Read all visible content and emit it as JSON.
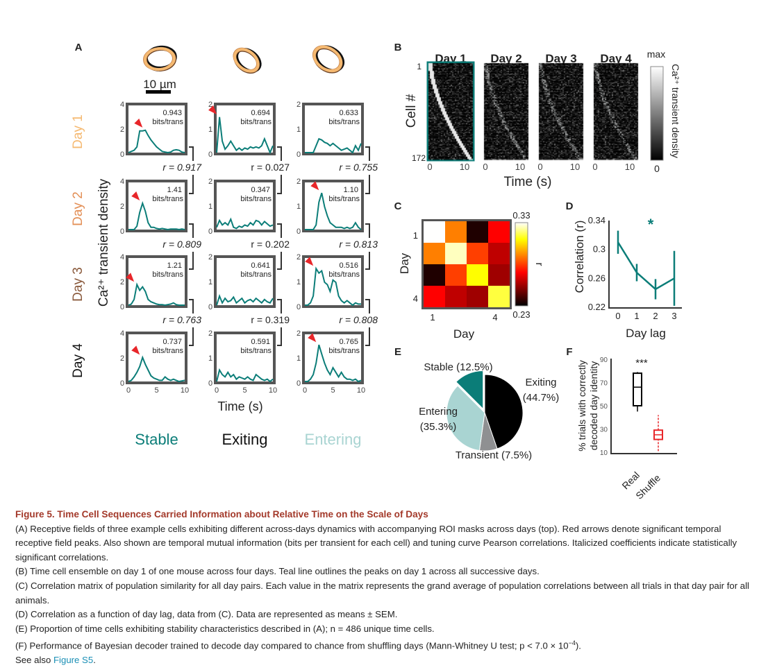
{
  "colors": {
    "teal": "#0b7d78",
    "light_teal": "#a9d4d2",
    "day1": "#f5b971",
    "day2": "#e38f56",
    "day3": "#8a5a3c",
    "day4": "#111111",
    "arrow": "#e8262a",
    "frame": "#555555",
    "caption_title": "#a3392a",
    "link": "#1a8fb5"
  },
  "panelA": {
    "label": "A",
    "scale_bar": "10 µm",
    "day_labels": [
      "Day 1",
      "Day 2",
      "Day 3",
      "Day 4"
    ],
    "ylabel": "Ca²⁺ transient density",
    "xlabel": "Time (s)",
    "xticks": [
      "0",
      "5",
      "10"
    ],
    "columns": [
      {
        "name": "Stable",
        "yticks": [
          "0",
          "2",
          "4"
        ],
        "ymax": 4,
        "bits": [
          "0.943",
          "1.41",
          "1.21",
          "0.737"
        ],
        "bits_unit": "bits/trans",
        "r": [
          "r = 0.917",
          "r = 0.809",
          "r = 0.763"
        ],
        "r_significant": true,
        "peak_arrows": [
          true,
          true,
          true,
          true
        ],
        "traces": [
          [
            0,
            0.1,
            0.2,
            0.5,
            1.9,
            1.9,
            1.95,
            1.5,
            1.1,
            0.8,
            0.5,
            0.3,
            0.1,
            0.05,
            0,
            0.05,
            0.2,
            0.25,
            0.2,
            0.05,
            0
          ],
          [
            0,
            0,
            0,
            0.3,
            1.5,
            2.3,
            1.6,
            0.6,
            0.2,
            0.2,
            0.1,
            0.05,
            0.1,
            0.05,
            0,
            0.05,
            0.05,
            0.05,
            0,
            0.05,
            0
          ],
          [
            0,
            0.1,
            0.5,
            1.8,
            1.3,
            1.6,
            1.2,
            0.5,
            0.3,
            0.2,
            0.1,
            0.05,
            0.05,
            0,
            0.05,
            0.1,
            0.2,
            0.05,
            0,
            0,
            0
          ],
          [
            0,
            0.1,
            0.4,
            0.8,
            1.3,
            2.1,
            1.5,
            1.0,
            0.5,
            0.3,
            0.2,
            0.1,
            0.1,
            0.4,
            0.2,
            0.1,
            0.2,
            0.1,
            0,
            0.05,
            0.1
          ]
        ]
      },
      {
        "name": "Exiting",
        "yticks": [
          "0",
          "1",
          "2"
        ],
        "ymax": 2,
        "bits": [
          "0.694",
          "0.347",
          "0.641",
          "0.591"
        ],
        "bits_unit": "bits/trans",
        "r": [
          "r = 0.027",
          "r = 0.202",
          "r = 0.319"
        ],
        "r_significant": false,
        "peak_arrows": [
          true,
          false,
          false,
          false
        ],
        "traces": [
          [
            0,
            1.55,
            0.5,
            0.15,
            0.3,
            0.5,
            0.3,
            0.1,
            0.2,
            0.1,
            0.2,
            0.15,
            0.25,
            0.2,
            0.25,
            0.2,
            0.3,
            0.6,
            0.3,
            0,
            0.3
          ],
          [
            0.1,
            0.4,
            0.2,
            0.3,
            0.2,
            0.45,
            0.1,
            0.05,
            0.15,
            0.1,
            0.2,
            0.15,
            0.3,
            0.2,
            0.4,
            0.35,
            0.2,
            0.35,
            0.25,
            0.15,
            0.2
          ],
          [
            0,
            0.4,
            0.1,
            0.3,
            0.15,
            0.2,
            0.35,
            0.1,
            0.2,
            0.3,
            0.1,
            0.2,
            0.25,
            0.15,
            0.3,
            0.2,
            0.1,
            0.25,
            0.15,
            0.1,
            0.3
          ],
          [
            0,
            0.5,
            0.3,
            0.2,
            0.4,
            0.2,
            0.3,
            0.1,
            0.2,
            0.15,
            0.1,
            0.2,
            0.1,
            0.05,
            0.3,
            0.2,
            0.1,
            0.05,
            0.1,
            0,
            0.1
          ]
        ]
      },
      {
        "name": "Entering",
        "yticks": [
          "0",
          "1",
          "2"
        ],
        "ymax": 2,
        "bits": [
          "0.633",
          "1.10",
          "0.516",
          "0.765"
        ],
        "bits_unit": "bits/trans",
        "r": [
          "r = 0.755",
          "r = 0.813",
          "r = 0.808"
        ],
        "r_significant": true,
        "peak_arrows": [
          false,
          true,
          true,
          true
        ],
        "traces": [
          [
            0,
            0,
            0,
            0,
            0.3,
            0.6,
            0.55,
            0.45,
            0.4,
            0.3,
            0.4,
            0.3,
            0.2,
            0.1,
            0.15,
            0.2,
            0.1,
            0,
            0.3,
            0.1,
            0.4
          ],
          [
            0,
            0,
            0,
            0,
            0.2,
            1.2,
            1.6,
            1.0,
            0.6,
            0.3,
            0.2,
            0.1,
            0.1,
            0.1,
            0.05,
            0.1,
            0.05,
            0.1,
            0.3,
            0.1,
            0
          ],
          [
            0,
            0,
            0.1,
            0.4,
            1.6,
            1.4,
            1.5,
            1.0,
            0.9,
            0.6,
            1.1,
            1.0,
            0.4,
            0.2,
            0.1,
            0.2,
            0.1,
            0,
            0.1,
            0.05,
            0.05
          ],
          [
            0,
            0,
            0.1,
            0.3,
            0.8,
            1.6,
            1.2,
            0.8,
            0.5,
            0.3,
            0.6,
            0.4,
            0.2,
            0.4,
            0.2,
            0.1,
            0.1,
            0.05,
            0.1,
            0,
            0.05
          ]
        ]
      }
    ]
  },
  "panelB": {
    "label": "B",
    "titles": [
      "Day 1",
      "Day 2",
      "Day 3",
      "Day 4"
    ],
    "ylabel": "Cell #",
    "yticks": [
      "1",
      "172"
    ],
    "xticks": [
      "0",
      "10"
    ],
    "xlabel": "Time (s)",
    "colorbar_max": "max",
    "colorbar_min": "0",
    "colorbar_label": "Ca²⁺ transient density",
    "n_cells": 172
  },
  "chart_data": [
    {
      "panel": "C",
      "type": "heatmap",
      "xlabel": "Day",
      "ylabel": "Day",
      "xticks": [
        "1",
        "4"
      ],
      "yticks": [
        "1",
        "4"
      ],
      "colorbar_label": "r",
      "colorbar_range": [
        0.23,
        0.33
      ],
      "colorbar_ticks": [
        "0.33",
        "0.23"
      ],
      "colormap": "hot",
      "values": [
        [
          0.33,
          0.29,
          0.235,
          0.27
        ],
        [
          0.29,
          0.325,
          0.28,
          0.26
        ],
        [
          0.235,
          0.28,
          0.31,
          0.255
        ],
        [
          0.27,
          0.26,
          0.255,
          0.315
        ]
      ]
    },
    {
      "panel": "D",
      "type": "line",
      "xlabel": "Day lag",
      "ylabel": "Correlation (r)",
      "x": [
        0,
        1,
        2,
        3
      ],
      "y": [
        0.31,
        0.268,
        0.245,
        0.26
      ],
      "sem": [
        0.016,
        0.012,
        0.014,
        0.038
      ],
      "ylim": [
        0.22,
        0.34
      ],
      "yticks": [
        "0.34",
        "0.3",
        "0.26",
        "0.22"
      ],
      "xticks": [
        "0",
        "1",
        "2",
        "3"
      ],
      "annotation": "*"
    },
    {
      "panel": "E",
      "type": "pie",
      "slices": [
        {
          "label": "Exiting",
          "pct_label": "(44.7%)",
          "value": 44.7,
          "color": "#000000"
        },
        {
          "label": "Transient",
          "pct_label": "(7.5%)",
          "value": 7.5,
          "color": "#8f9092"
        },
        {
          "label": "Entering",
          "pct_label": "(35.3%)",
          "value": 35.3,
          "color": "#a9d4d2"
        },
        {
          "label": "Stable",
          "pct_label": "(12.5%)",
          "value": 12.5,
          "color": "#0b7d78"
        }
      ]
    },
    {
      "panel": "F",
      "type": "box",
      "ylabel": [
        "% trials with correctly",
        "decoded day identity"
      ],
      "ylim": [
        10,
        90
      ],
      "yticks": [
        "90",
        "70",
        "50",
        "30",
        "10"
      ],
      "categories": [
        "Real",
        "Shuffle"
      ],
      "annotation": "***",
      "boxes": [
        {
          "min": 45,
          "q1": 50,
          "median": 66,
          "q3": 78,
          "max": 79,
          "color": "#000000"
        },
        {
          "min": 11,
          "q1": 21,
          "median": 25,
          "q3": 29,
          "max": 42,
          "color": "#e8262a"
        }
      ]
    }
  ],
  "panel_labels": {
    "C": "C",
    "D": "D",
    "E": "E",
    "F": "F"
  },
  "caption": {
    "title": "Figure 5.  Time Cell Sequences Carried Information about Relative Time on the Scale of Days",
    "paragraphs": [
      "(A) Receptive fields of three example cells exhibiting different across-days dynamics with accompanying ROI masks across days (top). Red arrows denote significant temporal receptive field peaks. Also shown are temporal mutual information (bits per transient for each cell) and tuning curve Pearson correlations. Italicized coefficients indicate statistically significant correlations.",
      "(B) Time cell ensemble on day 1 of one mouse across four days. Teal line outlines the peaks on day 1 across all successive days.",
      "(C) Correlation matrix of population similarity for all day pairs. Each value in the matrix represents the grand average of population correlations between all trials in that day pair for all animals.",
      "(D) Correlation as a function of day lag, data from (C). Data are represented as means ± SEM.",
      "(E) Proportion of time cells exhibiting stability characteristics described in (A); n = 486 unique time cells."
    ],
    "f_text": "(F) Performance of Bayesian decoder trained to decode day compared to chance from shuffling days (Mann-Whitney U test; p < 7.0 × 10",
    "f_exp": "−4",
    "f_end": ").",
    "see_also": "See also ",
    "see_also_link": "Figure S5",
    "see_also_end": "."
  }
}
